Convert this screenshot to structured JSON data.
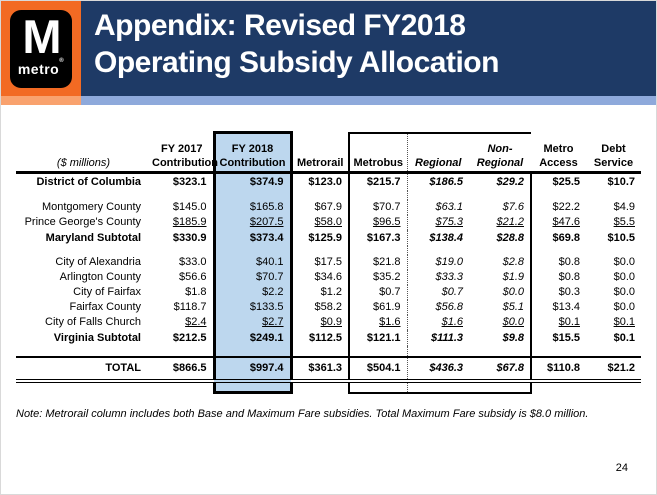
{
  "header": {
    "logo": {
      "m": "M",
      "metro": "metro",
      "reg": "®"
    },
    "title_line1": "Appendix: Revised FY2018",
    "title_line2": "Operating Subsidy Allocation"
  },
  "table": {
    "columns": [
      {
        "line1": "",
        "line2": "($ millions)"
      },
      {
        "line1": "FY 2017",
        "line2": "Contribution"
      },
      {
        "line1": "FY 2018",
        "line2": "Contribution"
      },
      {
        "line1": "",
        "line2": "Metrorail"
      },
      {
        "line1": "",
        "line2": "Metrobus"
      },
      {
        "line1": "",
        "line2": "Regional"
      },
      {
        "line1": "Non-",
        "line2": "Regional"
      },
      {
        "line1": "Metro",
        "line2": "Access"
      },
      {
        "line1": "Debt",
        "line2": "Service"
      }
    ],
    "rows": [
      {
        "type": "dc",
        "style": "bold",
        "label": "District of Columbia",
        "values": [
          "$323.1",
          "$374.9",
          "$123.0",
          "$215.7",
          "$186.5",
          "$29.2",
          "$25.5",
          "$10.7"
        ]
      },
      {
        "type": "spacer"
      },
      {
        "type": "data",
        "style": "normal",
        "label": "Montgomery County",
        "values": [
          "$145.0",
          "$165.8",
          "$67.9",
          "$70.7",
          "$63.1",
          "$7.6",
          "$22.2",
          "$4.9"
        ]
      },
      {
        "type": "data",
        "style": "underline",
        "label": "Prince George's County",
        "values": [
          "$185.9",
          "$207.5",
          "$58.0",
          "$96.5",
          "$75.3",
          "$21.2",
          "$47.6",
          "$5.5"
        ]
      },
      {
        "type": "subtotal",
        "style": "bold",
        "label": "Maryland Subtotal",
        "values": [
          "$330.9",
          "$373.4",
          "$125.9",
          "$167.3",
          "$138.4",
          "$28.8",
          "$69.8",
          "$10.5"
        ]
      },
      {
        "type": "spacer"
      },
      {
        "type": "data",
        "style": "normal",
        "label": "City of Alexandria",
        "values": [
          "$33.0",
          "$40.1",
          "$17.5",
          "$21.8",
          "$19.0",
          "$2.8",
          "$0.8",
          "$0.0"
        ]
      },
      {
        "type": "data",
        "style": "normal",
        "label": "Arlington County",
        "values": [
          "$56.6",
          "$70.7",
          "$34.6",
          "$35.2",
          "$33.3",
          "$1.9",
          "$0.8",
          "$0.0"
        ]
      },
      {
        "type": "data",
        "style": "normal",
        "label": "City of Fairfax",
        "values": [
          "$1.8",
          "$2.2",
          "$1.2",
          "$0.7",
          "$0.7",
          "$0.0",
          "$0.3",
          "$0.0"
        ]
      },
      {
        "type": "data",
        "style": "normal",
        "label": "Fairfax County",
        "values": [
          "$118.7",
          "$133.5",
          "$58.2",
          "$61.9",
          "$56.8",
          "$5.1",
          "$13.4",
          "$0.0"
        ]
      },
      {
        "type": "data",
        "style": "underline",
        "label": "City of Falls Church",
        "values": [
          "$2.4",
          "$2.7",
          "$0.9",
          "$1.6",
          "$1.6",
          "$0.0",
          "$0.1",
          "$0.1"
        ]
      },
      {
        "type": "subtotal",
        "style": "bold",
        "label": "Virginia Subtotal",
        "values": [
          "$212.5",
          "$249.1",
          "$112.5",
          "$121.1",
          "$111.3",
          "$9.8",
          "$15.5",
          "$0.1"
        ]
      },
      {
        "type": "spacer2"
      },
      {
        "type": "total",
        "style": "bold",
        "label": "TOTAL",
        "values": [
          "$866.5",
          "$997.4",
          "$361.3",
          "$504.1",
          "$436.3",
          "$67.8",
          "$110.8",
          "$21.2"
        ]
      },
      {
        "type": "tail"
      }
    ]
  },
  "note": "Note: Metrorail column includes both Base and Maximum Fare subsidies. Total Maximum Fare subsidy is $8.0 million.",
  "page_number": "24",
  "colors": {
    "orange": "#F26A23",
    "salmon": "#F9A26E",
    "navy": "#1E3A66",
    "light_blue": "#8EA9DB",
    "highlight": "#BDD7EE"
  }
}
